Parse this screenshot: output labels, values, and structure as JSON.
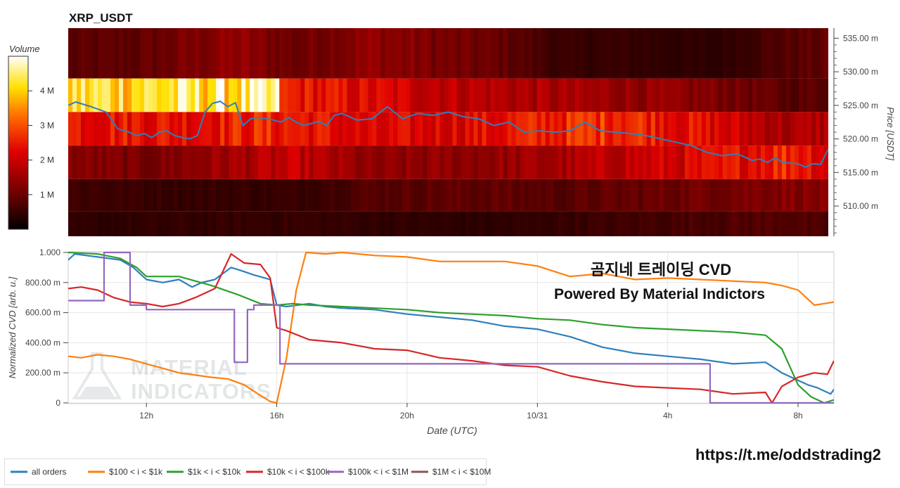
{
  "chart_data": [
    {
      "type": "heatmap",
      "title": "XRP_USDT",
      "ylabel": "Price [USDT]",
      "y_ticks": [
        "535.00 m",
        "530.00 m",
        "525.00 m",
        "520.00 m",
        "515.00 m",
        "510.00 m"
      ],
      "y_tick_values": [
        535,
        530,
        525,
        520,
        515,
        510
      ],
      "ylim": [
        505.5,
        536.5
      ],
      "price_bands": [
        531.5,
        526.5,
        521.5,
        516.5,
        511.5,
        507.0
      ],
      "colorbar": {
        "label": "Volume",
        "ticks": [
          "4 M",
          "3 M",
          "2 M",
          "1 M"
        ],
        "tick_values": [
          4,
          3,
          2,
          1
        ],
        "range": [
          0,
          5
        ]
      },
      "band_volume_profile": [
        [
          [
            0,
            0.8
          ],
          [
            10,
            0.9
          ],
          [
            22,
            1.4
          ],
          [
            30,
            1.0
          ],
          [
            40,
            1.4
          ],
          [
            50,
            1.1
          ],
          [
            58,
            0.9
          ],
          [
            65,
            0.5
          ],
          [
            72,
            0.5
          ],
          [
            85,
            0.4
          ],
          [
            95,
            0.8
          ],
          [
            100,
            0.9
          ]
        ],
        [
          [
            0,
            4.2
          ],
          [
            27.9,
            4.3
          ],
          [
            28.1,
            2.5
          ],
          [
            40,
            2.2
          ],
          [
            55,
            1.8
          ],
          [
            65,
            1.6
          ],
          [
            72,
            1.5
          ],
          [
            85,
            1.2
          ],
          [
            95,
            0.8
          ],
          [
            100,
            0.9
          ]
        ],
        [
          [
            0,
            2.5
          ],
          [
            15,
            2.4
          ],
          [
            25,
            2.6
          ],
          [
            30,
            2.5
          ],
          [
            40,
            2.1
          ],
          [
            55,
            2.3
          ],
          [
            65,
            2.6
          ],
          [
            72,
            2.8
          ],
          [
            85,
            2.2
          ],
          [
            95,
            1.6
          ],
          [
            100,
            1.8
          ]
        ],
        [
          [
            0,
            1.3
          ],
          [
            10,
            1.1
          ],
          [
            22,
            1.6
          ],
          [
            30,
            1.9
          ],
          [
            40,
            1.3
          ],
          [
            55,
            1.4
          ],
          [
            65,
            1.6
          ],
          [
            72,
            1.9
          ],
          [
            85,
            2.2
          ],
          [
            95,
            2.7
          ],
          [
            100,
            2.2
          ]
        ],
        [
          [
            0,
            0.6
          ],
          [
            15,
            0.5
          ],
          [
            30,
            0.5
          ],
          [
            40,
            0.8
          ],
          [
            55,
            0.9
          ],
          [
            65,
            0.8
          ],
          [
            72,
            0.9
          ],
          [
            85,
            1.1
          ],
          [
            95,
            1.3
          ],
          [
            100,
            1.2
          ]
        ],
        [
          [
            0,
            0.4
          ],
          [
            30,
            0.5
          ],
          [
            55,
            0.4
          ],
          [
            75,
            0.6
          ],
          [
            95,
            0.8
          ],
          [
            100,
            0.6
          ]
        ]
      ],
      "price_line": {
        "color": "#2f7fbd",
        "x": [
          0,
          1,
          3,
          5,
          6.5,
          8,
          9,
          10,
          11,
          12,
          13,
          14,
          15,
          16,
          17,
          18,
          19,
          20,
          21,
          22,
          23,
          24,
          25,
          26,
          27,
          28,
          29,
          30,
          31,
          32,
          33,
          34,
          35,
          36,
          38,
          40,
          42,
          44,
          46,
          48,
          50,
          52,
          54,
          56,
          58,
          60,
          62,
          64,
          66,
          68,
          70,
          72,
          74,
          76,
          78,
          80,
          82,
          84,
          86,
          88,
          90,
          91,
          92,
          93,
          94,
          95,
          96,
          97,
          98,
          99,
          100
        ],
        "y": [
          525.0,
          525.5,
          524.8,
          524.0,
          521.5,
          521.0,
          520.5,
          520.8,
          520.2,
          521.0,
          521.2,
          520.5,
          520.2,
          520.0,
          520.5,
          524.0,
          525.3,
          525.6,
          524.8,
          525.4,
          522.0,
          523.0,
          523.2,
          523.0,
          522.8,
          522.5,
          523.2,
          522.5,
          522.0,
          522.3,
          522.6,
          522.0,
          523.5,
          523.8,
          522.8,
          523.0,
          524.8,
          523.0,
          523.8,
          523.5,
          524.0,
          523.3,
          523.0,
          522.0,
          522.5,
          521.0,
          521.2,
          521.0,
          521.2,
          522.5,
          521.2,
          521.0,
          520.8,
          520.5,
          520.0,
          519.5,
          519.0,
          518.0,
          517.5,
          517.8,
          516.8,
          517.0,
          516.5,
          517.2,
          516.5,
          516.4,
          516.3,
          515.8,
          516.3,
          516.2,
          518.5
        ]
      }
    },
    {
      "type": "line",
      "title": "곰지네 트레이딩 CVD",
      "subtitle": "Powered By Material Indictors",
      "xlabel": "Date (UTC)",
      "ylabel": "Normalized CVD [arb. u.]",
      "x_ticks": [
        "12h",
        "16h",
        "20h",
        "10/31",
        "4h",
        "8h"
      ],
      "x_tick_values": [
        12,
        16,
        20,
        24,
        28,
        32
      ],
      "xlim": [
        9.6,
        33.1
      ],
      "y_ticks": [
        "1.000",
        "800.00 m",
        "600.00 m",
        "400.00 m",
        "200.00 m",
        "0"
      ],
      "y_tick_values": [
        1.0,
        0.8,
        0.6,
        0.4,
        0.2,
        0
      ],
      "ylim": [
        0,
        1.0
      ],
      "series": [
        {
          "name": "all orders",
          "color": "#2f7fbd",
          "x": [
            9.6,
            9.8,
            10.5,
            11.2,
            11.6,
            12,
            12.5,
            13,
            13.4,
            13.7,
            14.1,
            14.6,
            14.9,
            15.3,
            15.8,
            16.0,
            16.3,
            17,
            17.5,
            18,
            19,
            20,
            21,
            22,
            23,
            24,
            25,
            26,
            27,
            28,
            29,
            30,
            31,
            31.5,
            32,
            32.3,
            32.6,
            33.0,
            33.1
          ],
          "y": [
            0.95,
            0.99,
            0.97,
            0.95,
            0.9,
            0.82,
            0.8,
            0.82,
            0.77,
            0.8,
            0.82,
            0.9,
            0.88,
            0.85,
            0.82,
            0.65,
            0.64,
            0.66,
            0.64,
            0.63,
            0.62,
            0.59,
            0.57,
            0.55,
            0.51,
            0.49,
            0.44,
            0.37,
            0.33,
            0.31,
            0.29,
            0.26,
            0.27,
            0.2,
            0.15,
            0.12,
            0.1,
            0.06,
            0.09
          ]
        },
        {
          "name": "$100 < i < $1k",
          "color": "#ff7f0e",
          "x": [
            9.6,
            10,
            10.5,
            11,
            11.5,
            12,
            13,
            14,
            14.5,
            15,
            15.5,
            15.8,
            16.0,
            16.3,
            16.6,
            16.9,
            17.5,
            18,
            19,
            20,
            21,
            22,
            23,
            24,
            25,
            26,
            27,
            28,
            29,
            30,
            31,
            31.5,
            32,
            32.5,
            32.8,
            33.1
          ],
          "y": [
            0.31,
            0.3,
            0.32,
            0.31,
            0.29,
            0.26,
            0.2,
            0.17,
            0.16,
            0.12,
            0.05,
            0.01,
            0.0,
            0.3,
            0.75,
            1.0,
            0.99,
            1.0,
            0.98,
            0.97,
            0.94,
            0.94,
            0.94,
            0.91,
            0.84,
            0.86,
            0.82,
            0.83,
            0.82,
            0.81,
            0.8,
            0.78,
            0.75,
            0.65,
            0.66,
            0.67
          ]
        },
        {
          "name": "$1k < i < $10k",
          "color": "#2ca02c",
          "x": [
            9.6,
            10.5,
            11.2,
            11.7,
            12,
            13,
            14,
            14.8,
            15.5,
            16.0,
            16.5,
            17,
            18,
            19,
            20,
            21,
            22,
            23,
            24,
            25,
            26,
            27,
            28,
            29,
            30,
            31,
            31.5,
            32,
            32.4,
            32.8,
            33.1
          ],
          "y": [
            1.0,
            0.99,
            0.96,
            0.9,
            0.84,
            0.84,
            0.78,
            0.72,
            0.66,
            0.65,
            0.66,
            0.65,
            0.64,
            0.63,
            0.62,
            0.6,
            0.59,
            0.58,
            0.56,
            0.55,
            0.52,
            0.5,
            0.49,
            0.48,
            0.47,
            0.45,
            0.36,
            0.12,
            0.04,
            0.0,
            0.02
          ]
        },
        {
          "name": "$10k < i < $100k",
          "color": "#d62728",
          "x": [
            9.6,
            10,
            10.5,
            11,
            11.5,
            12,
            12.5,
            13,
            13.5,
            14.1,
            14.6,
            15,
            15.5,
            15.8,
            16.0,
            16.3,
            17,
            18,
            19,
            20,
            21,
            22,
            23,
            24,
            25,
            26,
            27,
            28,
            29,
            30,
            31,
            31.2,
            31.5,
            32,
            32.5,
            32.9,
            33.1
          ],
          "y": [
            0.76,
            0.77,
            0.75,
            0.7,
            0.67,
            0.66,
            0.64,
            0.66,
            0.7,
            0.76,
            0.99,
            0.93,
            0.92,
            0.83,
            0.5,
            0.48,
            0.42,
            0.4,
            0.36,
            0.35,
            0.3,
            0.28,
            0.25,
            0.24,
            0.18,
            0.14,
            0.11,
            0.1,
            0.09,
            0.06,
            0.07,
            0.0,
            0.11,
            0.17,
            0.2,
            0.19,
            0.28
          ]
        },
        {
          "name": "$100k < i < $1M",
          "color": "#9467bd",
          "x": [
            9.6,
            10.7,
            10.7,
            11.5,
            11.5,
            12.0,
            12.0,
            14.7,
            14.7,
            15.1,
            15.1,
            15.3,
            15.3,
            16.1,
            16.1,
            16.2,
            16.2,
            29.3,
            29.3,
            33.1
          ],
          "y": [
            0.68,
            0.68,
            1.0,
            1.0,
            0.65,
            0.65,
            0.62,
            0.62,
            0.27,
            0.27,
            0.62,
            0.62,
            0.65,
            0.65,
            0.26,
            0.26,
            0.26,
            0.26,
            0.0,
            0.0
          ]
        },
        {
          "name": "$1M < i < $10M",
          "color": "#8c564b",
          "x": [],
          "y": []
        }
      ]
    }
  ],
  "watermark": {
    "line1": "MATERIAL",
    "line2": "INDICATORS"
  },
  "footer": {
    "link": "https://t.me/oddstrading2"
  }
}
